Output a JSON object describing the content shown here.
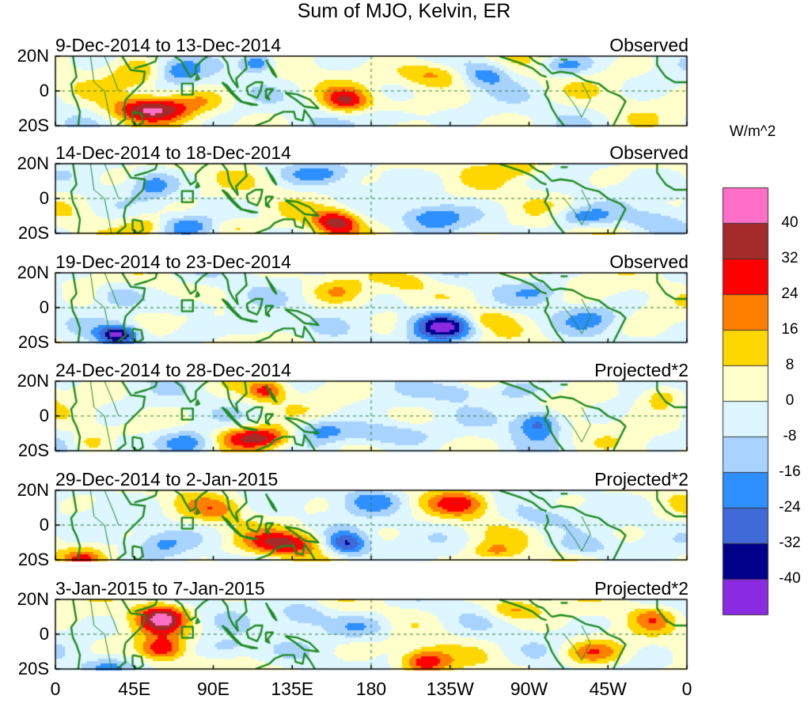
{
  "title": "Sum of MJO, Kelvin, ER",
  "panels": [
    {
      "date": "9-Dec-2014 to 13-Dec-2014",
      "label": "Observed"
    },
    {
      "date": "14-Dec-2014 to 18-Dec-2014",
      "label": "Observed"
    },
    {
      "date": "19-Dec-2014 to 23-Dec-2014",
      "label": "Observed"
    },
    {
      "date": "24-Dec-2014 to 28-Dec-2014",
      "label": "Projected*2"
    },
    {
      "date": "29-Dec-2014 to 2-Jan-2015",
      "label": "Projected*2"
    },
    {
      "date": "3-Jan-2015 to 7-Jan-2015",
      "label": "Projected*2"
    }
  ],
  "lat_ticks": [
    "20N",
    "0",
    "20S"
  ],
  "lon_ticks": [
    "0",
    "45E",
    "90E",
    "135E",
    "180",
    "135W",
    "90W",
    "45W",
    "0"
  ],
  "colorbar": {
    "unit": "W/m^2",
    "labels": [
      "40",
      "32",
      "24",
      "16",
      "8",
      "0",
      "-8",
      "-16",
      "-24",
      "-32",
      "-40"
    ],
    "colors": [
      "#ff6ec7",
      "#a52a2a",
      "#ff0000",
      "#ff7f00",
      "#ffd700",
      "#ffffcc",
      "#ddf6ff",
      "#a9d3ff",
      "#2e8fff",
      "#3f6ad8",
      "#00008b",
      "#8a2be2"
    ]
  }
}
